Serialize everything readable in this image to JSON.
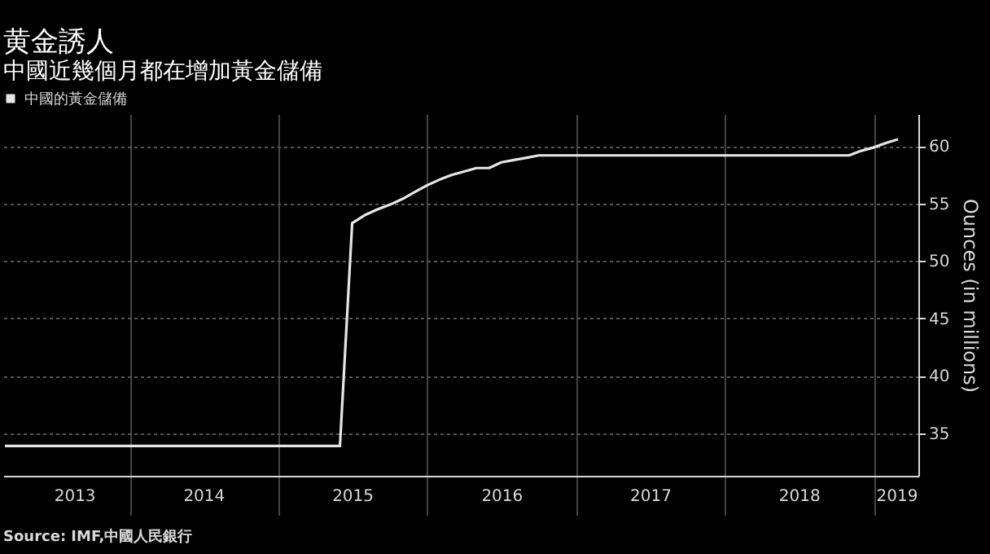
{
  "chart_data": {
    "type": "line",
    "title": "黄金誘人",
    "subtitle": "中國近幾個月都在增加黃金儲備",
    "ylabel": "Ounces (in millions)",
    "x": [
      "2013-03",
      "2015-06",
      "2015-07",
      "2015-08",
      "2015-09",
      "2015-10",
      "2015-11",
      "2015-12",
      "2016-01",
      "2016-02",
      "2016-03",
      "2016-04",
      "2016-05",
      "2016-06",
      "2016-07",
      "2016-08",
      "2016-09",
      "2016-10",
      "2018-11",
      "2018-12",
      "2019-01",
      "2019-02",
      "2019-03"
    ],
    "series": [
      {
        "name": "中國的黃金儲備",
        "color": "#e6e6e6",
        "values": [
          33.9,
          33.9,
          53.3,
          54.0,
          54.5,
          54.9,
          55.4,
          56.0,
          56.6,
          57.1,
          57.5,
          57.8,
          58.1,
          58.1,
          58.6,
          58.8,
          59.0,
          59.2,
          59.2,
          59.6,
          59.9,
          60.3,
          60.6
        ]
      }
    ],
    "xlim": [
      "2013-02-25",
      "2019-04-20"
    ],
    "xticks": [
      {
        "value": "2013-08-18",
        "label": "2013"
      },
      {
        "value": "2014-01-01",
        "label": null
      },
      {
        "value": "2014-07-01",
        "label": "2014"
      },
      {
        "value": "2015-01-01",
        "label": null
      },
      {
        "value": "2015-07-01",
        "label": "2015"
      },
      {
        "value": "2016-01-01",
        "label": null
      },
      {
        "value": "2016-07-01",
        "label": "2016"
      },
      {
        "value": "2017-01-01",
        "label": null
      },
      {
        "value": "2017-07-01",
        "label": "2017"
      },
      {
        "value": "2018-01-01",
        "label": null
      },
      {
        "value": "2018-07-01",
        "label": "2018"
      },
      {
        "value": "2019-01-01",
        "label": null
      },
      {
        "value": "2019-02-25",
        "label": "2019"
      }
    ],
    "ylim": [
      31.3,
      62.8
    ],
    "yticks": [
      35,
      40,
      45,
      50,
      55,
      60
    ],
    "grid": true,
    "legend": "top left",
    "marker": "none",
    "line_style": "solid",
    "annotations": [
      "Source: IMF,中國人民銀行"
    ]
  }
}
